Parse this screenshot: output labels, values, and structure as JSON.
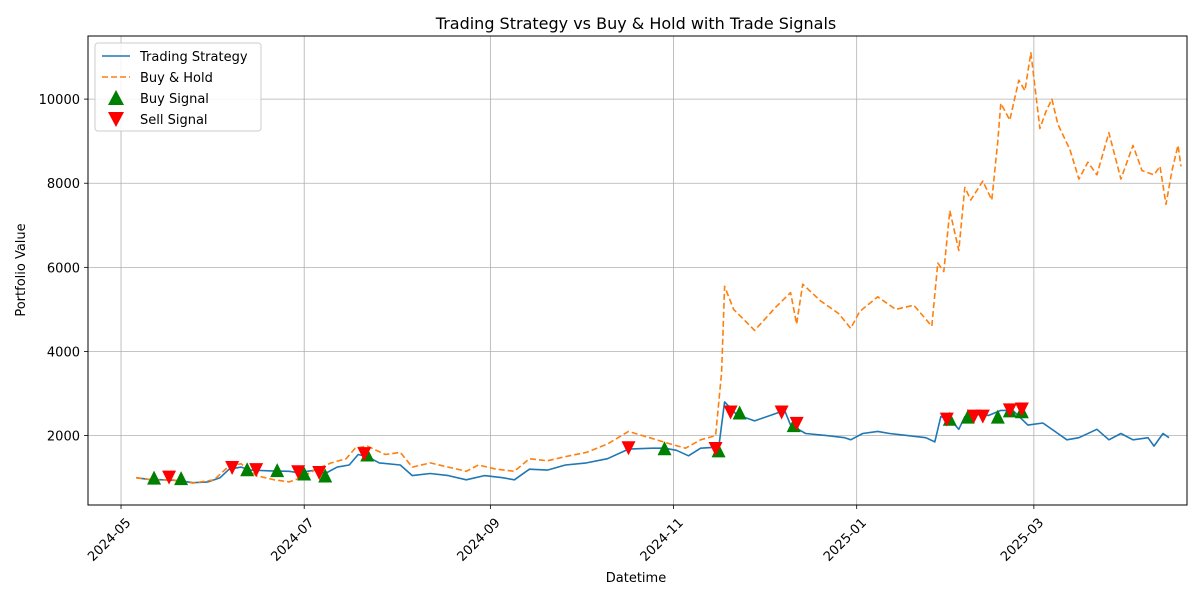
{
  "chart_data": {
    "type": "line",
    "title": "Trading Strategy vs Buy & Hold with Trade Signals",
    "xlabel": "Datetime",
    "ylabel": "Portfolio Value",
    "xlim": [
      "2024-04-20",
      "2025-04-21"
    ],
    "ylim": [
      350,
      11500
    ],
    "grid": true,
    "legend_position": "top-left",
    "x_ticks": [
      "2024-05",
      "2024-07",
      "2024-09",
      "2024-11",
      "2025-01",
      "2025-03"
    ],
    "y_ticks": [
      2000,
      4000,
      6000,
      8000,
      10000
    ],
    "series": [
      {
        "name": "Trading Strategy",
        "style": "solid",
        "color": "#1f77b4",
        "points": [
          [
            "2024-05-06",
            1000
          ],
          [
            "2024-05-10",
            960
          ],
          [
            "2024-05-15",
            950
          ],
          [
            "2024-05-20",
            930
          ],
          [
            "2024-05-25",
            880
          ],
          [
            "2024-05-30",
            900
          ],
          [
            "2024-06-03",
            1000
          ],
          [
            "2024-06-06",
            1200
          ],
          [
            "2024-06-10",
            1250
          ],
          [
            "2024-06-13",
            1180
          ],
          [
            "2024-06-20",
            1160
          ],
          [
            "2024-06-26",
            1150
          ],
          [
            "2024-06-28",
            1130
          ],
          [
            "2024-07-02",
            1150
          ],
          [
            "2024-07-05",
            1180
          ],
          [
            "2024-07-08",
            1100
          ],
          [
            "2024-07-12",
            1250
          ],
          [
            "2024-07-16",
            1300
          ],
          [
            "2024-07-19",
            1550
          ],
          [
            "2024-07-22",
            1500
          ],
          [
            "2024-07-26",
            1350
          ],
          [
            "2024-08-02",
            1300
          ],
          [
            "2024-08-06",
            1050
          ],
          [
            "2024-08-12",
            1100
          ],
          [
            "2024-08-18",
            1050
          ],
          [
            "2024-08-24",
            950
          ],
          [
            "2024-08-30",
            1050
          ],
          [
            "2024-09-05",
            1000
          ],
          [
            "2024-09-09",
            950
          ],
          [
            "2024-09-14",
            1200
          ],
          [
            "2024-09-20",
            1180
          ],
          [
            "2024-09-26",
            1300
          ],
          [
            "2024-10-03",
            1350
          ],
          [
            "2024-10-10",
            1450
          ],
          [
            "2024-10-17",
            1680
          ],
          [
            "2024-10-25",
            1700
          ],
          [
            "2024-10-29",
            1700
          ],
          [
            "2024-11-02",
            1650
          ],
          [
            "2024-11-06",
            1520
          ],
          [
            "2024-11-10",
            1700
          ],
          [
            "2024-11-14",
            1720
          ],
          [
            "2024-11-16",
            1700
          ],
          [
            "2024-11-18",
            2800
          ],
          [
            "2024-11-22",
            2500
          ],
          [
            "2024-11-28",
            2350
          ],
          [
            "2024-12-04",
            2500
          ],
          [
            "2024-12-08",
            2600
          ],
          [
            "2024-12-10",
            2250
          ],
          [
            "2024-12-15",
            2050
          ],
          [
            "2024-12-22",
            2000
          ],
          [
            "2024-12-28",
            1950
          ],
          [
            "2024-12-30",
            1900
          ],
          [
            "2025-01-03",
            2050
          ],
          [
            "2025-01-08",
            2100
          ],
          [
            "2025-01-12",
            2050
          ],
          [
            "2025-01-18",
            2000
          ],
          [
            "2025-01-24",
            1950
          ],
          [
            "2025-01-27",
            1850
          ],
          [
            "2025-01-29",
            2450
          ],
          [
            "2025-02-01",
            2400
          ],
          [
            "2025-02-04",
            2150
          ],
          [
            "2025-02-06",
            2450
          ],
          [
            "2025-02-10",
            2500
          ],
          [
            "2025-02-14",
            2480
          ],
          [
            "2025-02-18",
            2600
          ],
          [
            "2025-02-22",
            2600
          ],
          [
            "2025-02-27",
            2250
          ],
          [
            "2025-03-04",
            2300
          ],
          [
            "2025-03-08",
            2100
          ],
          [
            "2025-03-12",
            1900
          ],
          [
            "2025-03-16",
            1950
          ],
          [
            "2025-03-22",
            2150
          ],
          [
            "2025-03-26",
            1900
          ],
          [
            "2025-03-30",
            2050
          ],
          [
            "2025-04-03",
            1900
          ],
          [
            "2025-04-08",
            1950
          ],
          [
            "2025-04-10",
            1750
          ],
          [
            "2025-04-13",
            2050
          ],
          [
            "2025-04-15",
            1950
          ]
        ]
      },
      {
        "name": "Buy & Hold",
        "style": "dashed",
        "color": "#ff7f0e",
        "points": [
          [
            "2024-05-06",
            1000
          ],
          [
            "2024-05-12",
            940
          ],
          [
            "2024-05-18",
            950
          ],
          [
            "2024-05-25",
            870
          ],
          [
            "2024-06-01",
            950
          ],
          [
            "2024-06-06",
            1280
          ],
          [
            "2024-06-10",
            1330
          ],
          [
            "2024-06-15",
            1050
          ],
          [
            "2024-06-21",
            950
          ],
          [
            "2024-06-26",
            900
          ],
          [
            "2024-06-30",
            1000
          ],
          [
            "2024-07-05",
            1200
          ],
          [
            "2024-07-10",
            1350
          ],
          [
            "2024-07-15",
            1450
          ],
          [
            "2024-07-18",
            1700
          ],
          [
            "2024-07-22",
            1750
          ],
          [
            "2024-07-28",
            1550
          ],
          [
            "2024-08-02",
            1600
          ],
          [
            "2024-08-06",
            1250
          ],
          [
            "2024-08-12",
            1350
          ],
          [
            "2024-08-18",
            1250
          ],
          [
            "2024-08-24",
            1150
          ],
          [
            "2024-08-28",
            1300
          ],
          [
            "2024-09-03",
            1200
          ],
          [
            "2024-09-09",
            1150
          ],
          [
            "2024-09-14",
            1450
          ],
          [
            "2024-09-20",
            1400
          ],
          [
            "2024-09-26",
            1500
          ],
          [
            "2024-10-03",
            1600
          ],
          [
            "2024-10-10",
            1800
          ],
          [
            "2024-10-17",
            2100
          ],
          [
            "2024-10-24",
            1950
          ],
          [
            "2024-10-31",
            1800
          ],
          [
            "2024-11-05",
            1700
          ],
          [
            "2024-11-10",
            1900
          ],
          [
            "2024-11-15",
            2000
          ],
          [
            "2024-11-17",
            3500
          ],
          [
            "2024-11-18",
            5550
          ],
          [
            "2024-11-21",
            5000
          ],
          [
            "2024-11-28",
            4500
          ],
          [
            "2024-12-05",
            5050
          ],
          [
            "2024-12-10",
            5400
          ],
          [
            "2024-12-12",
            4650
          ],
          [
            "2024-12-14",
            5600
          ],
          [
            "2024-12-20",
            5200
          ],
          [
            "2024-12-26",
            4900
          ],
          [
            "2024-12-30",
            4550
          ],
          [
            "2025-01-02",
            4950
          ],
          [
            "2025-01-08",
            5300
          ],
          [
            "2025-01-14",
            5000
          ],
          [
            "2025-01-20",
            5100
          ],
          [
            "2025-01-26",
            4600
          ],
          [
            "2025-01-28",
            6100
          ],
          [
            "2025-01-30",
            5900
          ],
          [
            "2025-02-01",
            7350
          ],
          [
            "2025-02-04",
            6400
          ],
          [
            "2025-02-06",
            7900
          ],
          [
            "2025-02-08",
            7600
          ],
          [
            "2025-02-12",
            8050
          ],
          [
            "2025-02-15",
            7600
          ],
          [
            "2025-02-17",
            9000
          ],
          [
            "2025-02-18",
            9900
          ],
          [
            "2025-02-21",
            9500
          ],
          [
            "2025-02-24",
            10450
          ],
          [
            "2025-02-26",
            10200
          ],
          [
            "2025-02-28",
            11100
          ],
          [
            "2025-03-03",
            9300
          ],
          [
            "2025-03-05",
            9700
          ],
          [
            "2025-03-07",
            10000
          ],
          [
            "2025-03-09",
            9400
          ],
          [
            "2025-03-13",
            8800
          ],
          [
            "2025-03-16",
            8100
          ],
          [
            "2025-03-19",
            8500
          ],
          [
            "2025-03-22",
            8200
          ],
          [
            "2025-03-26",
            9200
          ],
          [
            "2025-03-30",
            8100
          ],
          [
            "2025-04-03",
            8900
          ],
          [
            "2025-04-06",
            8300
          ],
          [
            "2025-04-10",
            8200
          ],
          [
            "2025-04-12",
            8400
          ],
          [
            "2025-04-14",
            7500
          ],
          [
            "2025-04-16",
            8300
          ],
          [
            "2025-04-18",
            8900
          ],
          [
            "2025-04-19",
            8400
          ]
        ]
      }
    ],
    "buy_signals": {
      "name": "Buy Signal",
      "color": "green",
      "points": [
        [
          "2024-05-12",
          1000
        ],
        [
          "2024-05-21",
          990
        ],
        [
          "2024-06-12",
          1200
        ],
        [
          "2024-06-22",
          1180
        ],
        [
          "2024-07-01",
          1100
        ],
        [
          "2024-07-08",
          1050
        ],
        [
          "2024-07-22",
          1550
        ],
        [
          "2024-10-29",
          1700
        ],
        [
          "2024-11-16",
          1650
        ],
        [
          "2024-11-23",
          2550
        ],
        [
          "2024-12-11",
          2250
        ],
        [
          "2025-02-01",
          2400
        ],
        [
          "2025-02-07",
          2450
        ],
        [
          "2025-02-17",
          2450
        ],
        [
          "2025-02-21",
          2600
        ],
        [
          "2025-02-25",
          2580
        ]
      ]
    },
    "sell_signals": {
      "name": "Sell Signal",
      "color": "red",
      "points": [
        [
          "2024-05-17",
          1000
        ],
        [
          "2024-06-07",
          1230
        ],
        [
          "2024-06-15",
          1180
        ],
        [
          "2024-06-29",
          1130
        ],
        [
          "2024-07-06",
          1110
        ],
        [
          "2024-07-21",
          1560
        ],
        [
          "2024-10-17",
          1700
        ],
        [
          "2024-11-15",
          1680
        ],
        [
          "2024-11-20",
          2550
        ],
        [
          "2024-12-07",
          2550
        ],
        [
          "2024-12-12",
          2280
        ],
        [
          "2025-01-31",
          2380
        ],
        [
          "2025-02-09",
          2450
        ],
        [
          "2025-02-12",
          2450
        ],
        [
          "2025-02-21",
          2600
        ],
        [
          "2025-02-25",
          2620
        ]
      ]
    }
  }
}
